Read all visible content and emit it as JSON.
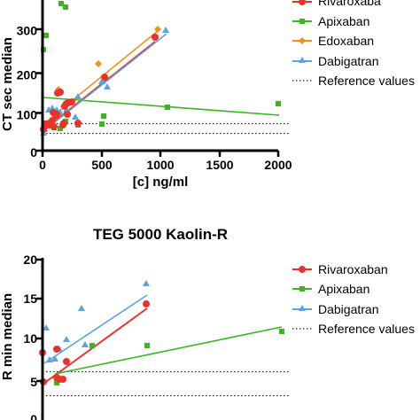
{
  "chart_data": [
    {
      "type": "scatter",
      "title": "",
      "xlabel": "[c] ng/ml",
      "ylabel": "CT sec median",
      "xlim": [
        0,
        2000
      ],
      "ylim": [
        0,
        350
      ],
      "x_ticks": [
        "0",
        "500",
        "1000",
        "1500",
        "2000"
      ],
      "y_ticks": [
        "0",
        "100",
        "200",
        "300"
      ],
      "legend_position": "right",
      "reference_label": "Reference values",
      "reference_values": [
        44,
        71
      ],
      "series": [
        {
          "name": "Rivaroxaba",
          "color": "#e8332a",
          "marker": "circle",
          "points": [
            [
              10,
              60
            ],
            [
              25,
              68
            ],
            [
              50,
              65
            ],
            [
              60,
              72
            ],
            [
              80,
              75
            ],
            [
              90,
              100
            ],
            [
              100,
              58
            ],
            [
              110,
              85
            ],
            [
              120,
              95
            ],
            [
              130,
              140
            ],
            [
              150,
              145
            ],
            [
              170,
              65
            ],
            [
              180,
              70
            ],
            [
              190,
              115
            ],
            [
              200,
              110
            ],
            [
              210,
              85
            ],
            [
              220,
              120
            ],
            [
              250,
              125
            ],
            [
              300,
              70
            ],
            [
              500,
              185
            ],
            [
              960,
              282
            ]
          ],
          "fit": [
            [
              10,
              58
            ],
            [
              960,
              282
            ]
          ]
        },
        {
          "name": "Apixaban",
          "color": "#3cb521",
          "marker": "square",
          "points": [
            [
              10,
              248
            ],
            [
              30,
              288
            ],
            [
              50,
              70
            ],
            [
              80,
              68
            ],
            [
              100,
              62
            ],
            [
              150,
              60
            ],
            [
              160,
              370
            ],
            [
              190,
              358
            ],
            [
              200,
              75
            ],
            [
              300,
              65
            ],
            [
              500,
              70
            ],
            [
              520,
              88
            ],
            [
              1060,
              110
            ],
            [
              2010,
              116
            ]
          ],
          "fit": [
            [
              10,
              140
            ],
            [
              2010,
              92
            ]
          ]
        },
        {
          "name": "Edoxaban",
          "color": "#f39019",
          "marker": "diamond",
          "points": [
            [
              140,
              142
            ],
            [
              470,
              218
            ],
            [
              980,
              305
            ]
          ],
          "fit": [
            [
              140,
              105
            ],
            [
              980,
              305
            ]
          ]
        },
        {
          "name": "Dabigatran",
          "color": "#5aa3e0",
          "marker": "triangle",
          "points": [
            [
              10,
              52
            ],
            [
              20,
              62
            ],
            [
              40,
              80
            ],
            [
              50,
              105
            ],
            [
              80,
              110
            ],
            [
              100,
              80
            ],
            [
              120,
              100
            ],
            [
              150,
              95
            ],
            [
              180,
              115
            ],
            [
              190,
              75
            ],
            [
              200,
              100
            ],
            [
              280,
              85
            ],
            [
              300,
              135
            ],
            [
              500,
              172
            ],
            [
              550,
              160
            ],
            [
              1050,
              298
            ]
          ],
          "fit": [
            [
              10,
              58
            ],
            [
              1050,
              295
            ]
          ]
        }
      ]
    },
    {
      "type": "scatter",
      "title": "TEG 5000 Kaolin-R",
      "xlabel": "",
      "ylabel": "R min median",
      "xlim": [
        0,
        2000
      ],
      "ylim": [
        0,
        20
      ],
      "y_ticks": [
        "0",
        "5",
        "10",
        "15",
        "20"
      ],
      "legend_position": "right",
      "reference_label": "Reference values",
      "reference_values": [
        3,
        6
      ],
      "series": [
        {
          "name": "Rivaroxaban",
          "color": "#e8332a",
          "marker": "circle",
          "points": [
            [
              10,
              4.8
            ],
            [
              20,
              8.4
            ],
            [
              120,
              5.4
            ],
            [
              130,
              8.9
            ],
            [
              150,
              5.1
            ],
            [
              180,
              5.2
            ],
            [
              200,
              7.2
            ],
            [
              960,
              14.4
            ]
          ],
          "fit": [
            [
              10,
              4.6
            ],
            [
              960,
              14.0
            ]
          ]
        },
        {
          "name": "Apixaban",
          "color": "#3cb521",
          "marker": "square",
          "points": [
            [
              120,
              4.5
            ],
            [
              430,
              9.3
            ],
            [
              960,
              9.2
            ],
            [
              2000,
              11.0
            ]
          ],
          "fit": [
            [
              120,
              5.8
            ],
            [
              2000,
              11.5
            ]
          ]
        },
        {
          "name": "Dabigatran",
          "color": "#5aa3e0",
          "marker": "triangle",
          "points": [
            [
              20,
              11.8
            ],
            [
              60,
              7.4
            ],
            [
              100,
              7.6
            ],
            [
              160,
              8.9
            ],
            [
              200,
              10.0
            ],
            [
              400,
              9.3
            ],
            [
              330,
              13.8
            ],
            [
              950,
              16.8
            ]
          ],
          "fit": [
            [
              10,
              7.0
            ],
            [
              950,
              15.6
            ]
          ]
        }
      ]
    }
  ]
}
